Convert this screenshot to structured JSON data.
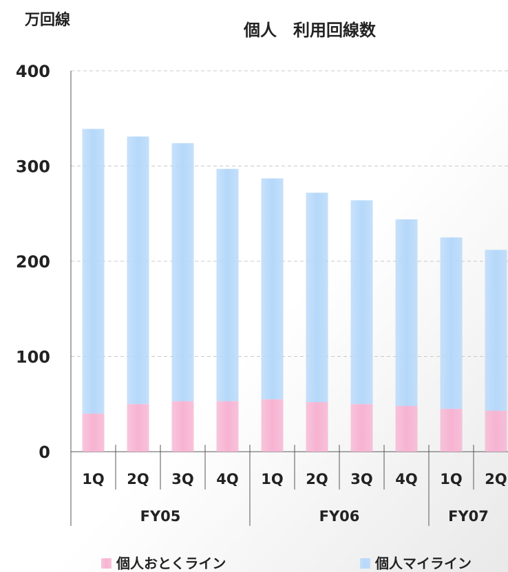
{
  "chart_data": {
    "type": "stacked_bar",
    "title": "個人　利用回線数",
    "y_label": "万回線",
    "category_groups": [
      {
        "label": "FY05",
        "categories": [
          "1Q",
          "2Q",
          "3Q",
          "4Q"
        ]
      },
      {
        "label": "FY06",
        "categories": [
          "1Q",
          "2Q",
          "3Q",
          "4Q"
        ]
      },
      {
        "label": "FY07",
        "categories": [
          "1Q",
          "2Q"
        ]
      }
    ],
    "series": [
      {
        "name": "個人おとくライン",
        "color": "#f7b3d2",
        "values": [
          40,
          50,
          53,
          53,
          55,
          52,
          50,
          48,
          45,
          43
        ]
      },
      {
        "name": "個人マイライン",
        "color": "#b5d8fa",
        "values": [
          299,
          281,
          271,
          244,
          232,
          220,
          214,
          196,
          180,
          169
        ]
      }
    ],
    "ylim": [
      0,
      400
    ],
    "yticks": [
      0,
      100,
      200,
      300,
      400
    ],
    "grid": true,
    "legend": "bottom"
  }
}
